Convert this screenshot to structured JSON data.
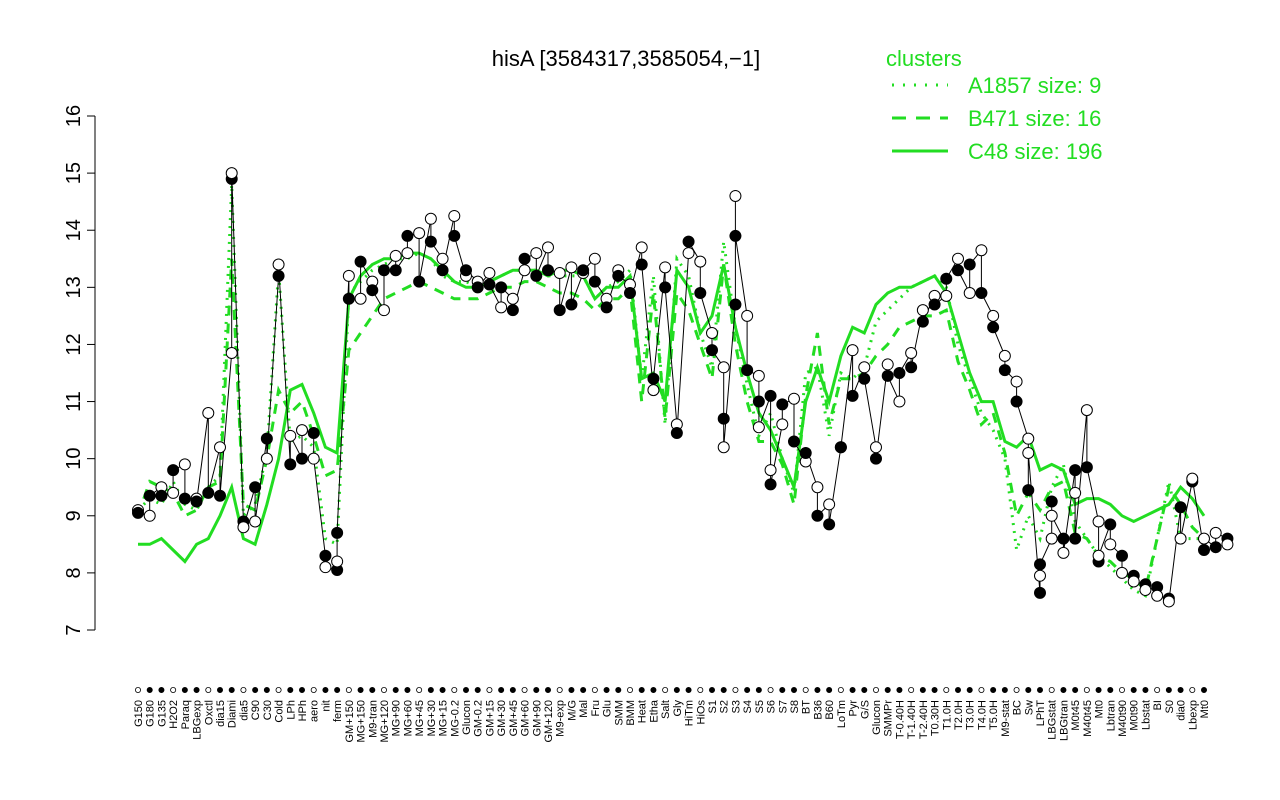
{
  "chart_data": {
    "type": "line",
    "title": "hisA [3584317,3585054,−1]",
    "xlabel": "",
    "ylabel": "",
    "ylim": [
      7,
      16
    ],
    "yticks": [
      "7",
      "8",
      "9",
      "10",
      "11",
      "12",
      "13",
      "14",
      "15",
      "16"
    ],
    "grid": false,
    "legend": {
      "title": "clusters",
      "placement": "top-right",
      "entries": [
        {
          "label": "A1857 size: 9",
          "style": "dotted"
        },
        {
          "label": "B471 size: 16",
          "style": "dashed"
        },
        {
          "label": "C48 size: 196",
          "style": "solid"
        }
      ]
    },
    "line_color": "#22dd22",
    "xtick_labels": [
      "G150",
      "G180",
      "G135",
      "H2O2",
      "Paraq",
      "LBGexp",
      "Oxctl",
      "dia15",
      "Diami",
      "dia5",
      "C90",
      "C30",
      "Cold",
      "LPh",
      "HPh",
      "aero",
      "nit",
      "ferm",
      "GM+150",
      "MG+150",
      "M9-tran",
      "MG+120",
      "MG+90",
      "MG+60",
      "MG+45",
      "MG+30",
      "MG+15",
      "MG-0.2",
      "Glucon",
      "GM-0.2",
      "GM+15",
      "GM+30",
      "GM+45",
      "GM+60",
      "GM+90",
      "GM+120",
      "M9-exp",
      "M/G",
      "Mal",
      "Fru",
      "Glu",
      "SMM",
      "BMM",
      "Heat",
      "Etha",
      "Salt",
      "Gly",
      "HiTm",
      "HiOs",
      "S1",
      "S2",
      "S3",
      "S4",
      "S5",
      "S6",
      "S7",
      "S8",
      "BT",
      "B36",
      "B60",
      "LoTm",
      "Pyr",
      "G/S",
      "Glucon",
      "SMMPr",
      "T-0.40H",
      "T-1.40H",
      "T-2.40H",
      "T0.30H",
      "T1.0H",
      "T2.0H",
      "T3.0H",
      "T4.0H",
      "T5.0H",
      "M9-stat",
      "BC",
      "Sw",
      "LPhT",
      "LBGstat",
      "LBGtran",
      "M0t45",
      "M40t45",
      "Mt0",
      "Lbtran",
      "M40t90",
      "M0t90",
      "Lbstat",
      "BI",
      "S0",
      "dia0",
      "Lbexp",
      "Mt0"
    ],
    "series": [
      {
        "style": "solid",
        "values": [
          8.5,
          8.5,
          8.6,
          8.4,
          8.2,
          8.5,
          8.6,
          9.0,
          9.5,
          8.6,
          8.5,
          9.2,
          10.0,
          11.2,
          11.3,
          10.8,
          10.2,
          10.1,
          12.8,
          13.2,
          13.4,
          13.5,
          13.5,
          13.6,
          13.6,
          13.5,
          13.3,
          13.1,
          13.0,
          13.0,
          13.1,
          13.2,
          13.3,
          13.3,
          13.3,
          13.2,
          13.3,
          13.3,
          13.2,
          12.8,
          13.0,
          13.0,
          13.2,
          11.4,
          11.5,
          11.0,
          13.3,
          13.0,
          12.2,
          12.5,
          13.4,
          12.3,
          11.5,
          10.8,
          10.5,
          10.0,
          9.5,
          11.0,
          11.6,
          11.0,
          11.8,
          12.3,
          12.2,
          12.7,
          12.9,
          13.0,
          13.0,
          13.1,
          13.2,
          12.9,
          12.2,
          11.5,
          11.0,
          11.0,
          10.3,
          10.2,
          10.4,
          9.8,
          9.9,
          9.8,
          9.2,
          9.3,
          9.3,
          9.2,
          9.0,
          8.9,
          9.0,
          9.1,
          9.2,
          9.5,
          9.3,
          9.0
        ]
      },
      {
        "style": "dashed",
        "values": [
          9.0,
          9.6,
          9.5,
          9.4,
          9.0,
          9.1,
          9.5,
          9.6,
          13.5,
          9.2,
          9.1,
          10.0,
          11.2,
          10.8,
          11.0,
          10.4,
          9.7,
          9.8,
          11.9,
          12.2,
          12.5,
          12.8,
          12.9,
          13.0,
          13.1,
          13.0,
          12.9,
          12.8,
          12.8,
          12.8,
          12.9,
          13.0,
          13.0,
          13.1,
          13.1,
          13.0,
          12.9,
          12.9,
          12.8,
          12.6,
          12.8,
          12.8,
          13.0,
          11.0,
          12.9,
          10.7,
          12.9,
          12.6,
          12.0,
          11.4,
          13.4,
          12.0,
          11.0,
          10.3,
          10.3,
          9.9,
          9.2,
          11.1,
          12.2,
          10.6,
          11.4,
          11.4,
          11.5,
          11.8,
          12.0,
          12.3,
          12.4,
          12.5,
          12.5,
          12.6,
          11.7,
          11.2,
          10.6,
          10.8,
          10.1,
          9.0,
          9.4,
          9.1,
          9.5,
          9.6,
          8.7,
          8.6,
          8.3,
          8.2,
          8.0,
          7.9,
          7.7,
          8.6,
          9.5,
          9.2,
          8.8,
          8.6
        ]
      },
      {
        "style": "dotted",
        "values": [
          9.1,
          9.3,
          9.2,
          9.6,
          9.2,
          9.1,
          9.5,
          9.7,
          14.8,
          9.0,
          9.2,
          10.1,
          13.3,
          10.3,
          10.4,
          10.2,
          8.6,
          8.5,
          12.9,
          13.1,
          13.3,
          13.4,
          13.5,
          13.5,
          13.6,
          13.5,
          13.2,
          13.1,
          13.1,
          13.0,
          13.1,
          13.2,
          13.3,
          13.3,
          13.3,
          13.2,
          13.2,
          13.2,
          13.2,
          12.8,
          13.0,
          13.1,
          13.3,
          11.4,
          13.2,
          10.6,
          13.5,
          13.2,
          12.2,
          11.6,
          13.8,
          12.3,
          11.3,
          10.4,
          10.8,
          10.0,
          9.4,
          11.5,
          11.6,
          10.4,
          11.5,
          11.4,
          11.6,
          12.4,
          12.6,
          12.8,
          13.0,
          13.1,
          13.2,
          13.0,
          12.0,
          11.4,
          10.8,
          10.5,
          10.0,
          8.4,
          9.0,
          8.6,
          9.5,
          9.9,
          8.9,
          8.6,
          8.3,
          8.1,
          7.9,
          7.7,
          7.6,
          8.6,
          9.6,
          8.6,
          8.6,
          8.6
        ]
      }
    ],
    "points": [
      {
        "x": 1,
        "y": 9.1
      },
      {
        "x": 1,
        "y": 9.05
      },
      {
        "x": 2,
        "y": 9.0
      },
      {
        "x": 2,
        "y": 9.35
      },
      {
        "x": 3,
        "y": 9.5
      },
      {
        "x": 3,
        "y": 9.35
      },
      {
        "x": 4,
        "y": 9.4
      },
      {
        "x": 4,
        "y": 9.8
      },
      {
        "x": 5,
        "y": 9.9
      },
      {
        "x": 5,
        "y": 9.3
      },
      {
        "x": 6,
        "y": 9.3
      },
      {
        "x": 6,
        "y": 9.25
      },
      {
        "x": 7,
        "y": 10.8
      },
      {
        "x": 7,
        "y": 9.4
      },
      {
        "x": 8,
        "y": 10.2
      },
      {
        "x": 8,
        "y": 9.35
      },
      {
        "x": 9,
        "y": 11.85
      },
      {
        "x": 9,
        "y": 14.9
      },
      {
        "x": 9,
        "y": 15.0
      },
      {
        "x": 10,
        "y": 8.9
      },
      {
        "x": 10,
        "y": 8.8
      },
      {
        "x": 11,
        "y": 9.5
      },
      {
        "x": 11,
        "y": 8.9
      },
      {
        "x": 12,
        "y": 10.35
      },
      {
        "x": 12,
        "y": 10.0
      },
      {
        "x": 13,
        "y": 13.2
      },
      {
        "x": 13,
        "y": 13.4
      },
      {
        "x": 14,
        "y": 9.9
      },
      {
        "x": 14,
        "y": 10.4
      },
      {
        "x": 15,
        "y": 10.0
      },
      {
        "x": 15,
        "y": 10.5
      },
      {
        "x": 16,
        "y": 10.45
      },
      {
        "x": 16,
        "y": 10.0
      },
      {
        "x": 17,
        "y": 8.3
      },
      {
        "x": 17,
        "y": 8.1
      },
      {
        "x": 18,
        "y": 8.05
      },
      {
        "x": 18,
        "y": 8.2
      },
      {
        "x": 18,
        "y": 8.7
      },
      {
        "x": 19,
        "y": 13.2
      },
      {
        "x": 19,
        "y": 12.8
      },
      {
        "x": 20,
        "y": 12.8
      },
      {
        "x": 20,
        "y": 13.45
      },
      {
        "x": 21,
        "y": 13.1
      },
      {
        "x": 21,
        "y": 12.95
      },
      {
        "x": 22,
        "y": 12.6
      },
      {
        "x": 22,
        "y": 13.3
      },
      {
        "x": 23,
        "y": 13.55
      },
      {
        "x": 23,
        "y": 13.3
      },
      {
        "x": 24,
        "y": 13.6
      },
      {
        "x": 24,
        "y": 13.9
      },
      {
        "x": 25,
        "y": 13.95
      },
      {
        "x": 25,
        "y": 13.1
      },
      {
        "x": 26,
        "y": 14.2
      },
      {
        "x": 26,
        "y": 13.8
      },
      {
        "x": 27,
        "y": 13.5
      },
      {
        "x": 27,
        "y": 13.3
      },
      {
        "x": 28,
        "y": 14.25
      },
      {
        "x": 28,
        "y": 13.9
      },
      {
        "x": 29,
        "y": 13.2
      },
      {
        "x": 29,
        "y": 13.3
      },
      {
        "x": 30,
        "y": 13.1
      },
      {
        "x": 30,
        "y": 13.0
      },
      {
        "x": 31,
        "y": 13.25
      },
      {
        "x": 31,
        "y": 13.05
      },
      {
        "x": 32,
        "y": 12.65
      },
      {
        "x": 32,
        "y": 13.0
      },
      {
        "x": 33,
        "y": 12.8
      },
      {
        "x": 33,
        "y": 12.6
      },
      {
        "x": 34,
        "y": 13.3
      },
      {
        "x": 34,
        "y": 13.5
      },
      {
        "x": 35,
        "y": 13.6
      },
      {
        "x": 35,
        "y": 13.2
      },
      {
        "x": 36,
        "y": 13.7
      },
      {
        "x": 36,
        "y": 13.3
      },
      {
        "x": 37,
        "y": 13.25
      },
      {
        "x": 37,
        "y": 12.6
      },
      {
        "x": 38,
        "y": 13.35
      },
      {
        "x": 38,
        "y": 12.7
      },
      {
        "x": 39,
        "y": 13.25
      },
      {
        "x": 39,
        "y": 13.3
      },
      {
        "x": 40,
        "y": 13.5
      },
      {
        "x": 40,
        "y": 13.1
      },
      {
        "x": 41,
        "y": 12.8
      },
      {
        "x": 41,
        "y": 12.65
      },
      {
        "x": 42,
        "y": 13.3
      },
      {
        "x": 42,
        "y": 13.2
      },
      {
        "x": 43,
        "y": 13.05
      },
      {
        "x": 43,
        "y": 12.9
      },
      {
        "x": 44,
        "y": 13.7
      },
      {
        "x": 44,
        "y": 13.4
      },
      {
        "x": 45,
        "y": 11.2
      },
      {
        "x": 45,
        "y": 11.4
      },
      {
        "x": 46,
        "y": 13.35
      },
      {
        "x": 46,
        "y": 13.0
      },
      {
        "x": 47,
        "y": 10.6
      },
      {
        "x": 47,
        "y": 10.45
      },
      {
        "x": 48,
        "y": 13.6
      },
      {
        "x": 48,
        "y": 13.8
      },
      {
        "x": 49,
        "y": 13.45
      },
      {
        "x": 49,
        "y": 12.9
      },
      {
        "x": 50,
        "y": 12.2
      },
      {
        "x": 50,
        "y": 11.9
      },
      {
        "x": 51,
        "y": 11.6
      },
      {
        "x": 51,
        "y": 10.7
      },
      {
        "x": 51,
        "y": 10.2
      },
      {
        "x": 52,
        "y": 12.7
      },
      {
        "x": 52,
        "y": 14.6
      },
      {
        "x": 52,
        "y": 13.9
      },
      {
        "x": 53,
        "y": 12.5
      },
      {
        "x": 53,
        "y": 11.55
      },
      {
        "x": 54,
        "y": 11.45
      },
      {
        "x": 54,
        "y": 11.0
      },
      {
        "x": 54,
        "y": 10.55
      },
      {
        "x": 55,
        "y": 11.1
      },
      {
        "x": 55,
        "y": 9.8
      },
      {
        "x": 55,
        "y": 9.55
      },
      {
        "x": 56,
        "y": 10.6
      },
      {
        "x": 56,
        "y": 10.95
      },
      {
        "x": 57,
        "y": 11.05
      },
      {
        "x": 57,
        "y": 10.3
      },
      {
        "x": 58,
        "y": 9.95
      },
      {
        "x": 58,
        "y": 10.1
      },
      {
        "x": 59,
        "y": 9.5
      },
      {
        "x": 59,
        "y": 9.0
      },
      {
        "x": 60,
        "y": 9.2
      },
      {
        "x": 60,
        "y": 8.85
      },
      {
        "x": 61,
        "y": 10.2
      },
      {
        "x": 61,
        "y": 10.2
      },
      {
        "x": 62,
        "y": 11.9
      },
      {
        "x": 62,
        "y": 11.1
      },
      {
        "x": 63,
        "y": 11.6
      },
      {
        "x": 63,
        "y": 11.4
      },
      {
        "x": 64,
        "y": 10.2
      },
      {
        "x": 64,
        "y": 10.0
      },
      {
        "x": 65,
        "y": 11.65
      },
      {
        "x": 65,
        "y": 11.45
      },
      {
        "x": 66,
        "y": 11.0
      },
      {
        "x": 66,
        "y": 11.5
      },
      {
        "x": 67,
        "y": 11.85
      },
      {
        "x": 67,
        "y": 11.6
      },
      {
        "x": 68,
        "y": 12.6
      },
      {
        "x": 68,
        "y": 12.4
      },
      {
        "x": 69,
        "y": 12.85
      },
      {
        "x": 69,
        "y": 12.7
      },
      {
        "x": 70,
        "y": 12.85
      },
      {
        "x": 70,
        "y": 13.15
      },
      {
        "x": 71,
        "y": 13.5
      },
      {
        "x": 71,
        "y": 13.3
      },
      {
        "x": 72,
        "y": 12.9
      },
      {
        "x": 72,
        "y": 13.4
      },
      {
        "x": 73,
        "y": 13.65
      },
      {
        "x": 73,
        "y": 12.9
      },
      {
        "x": 74,
        "y": 12.5
      },
      {
        "x": 74,
        "y": 12.3
      },
      {
        "x": 75,
        "y": 11.8
      },
      {
        "x": 75,
        "y": 11.55
      },
      {
        "x": 76,
        "y": 11.35
      },
      {
        "x": 76,
        "y": 11.0
      },
      {
        "x": 77,
        "y": 10.35
      },
      {
        "x": 77,
        "y": 9.45
      },
      {
        "x": 77,
        "y": 10.1
      },
      {
        "x": 78,
        "y": 7.65
      },
      {
        "x": 78,
        "y": 7.95
      },
      {
        "x": 78,
        "y": 8.15
      },
      {
        "x": 79,
        "y": 8.6
      },
      {
        "x": 79,
        "y": 9.25
      },
      {
        "x": 79,
        "y": 9.0
      },
      {
        "x": 80,
        "y": 8.6
      },
      {
        "x": 80,
        "y": 8.35
      },
      {
        "x": 81,
        "y": 9.8
      },
      {
        "x": 81,
        "y": 9.4
      },
      {
        "x": 81,
        "y": 8.6
      },
      {
        "x": 82,
        "y": 10.85
      },
      {
        "x": 82,
        "y": 9.85
      },
      {
        "x": 83,
        "y": 8.9
      },
      {
        "x": 83,
        "y": 8.2
      },
      {
        "x": 83,
        "y": 8.3
      },
      {
        "x": 84,
        "y": 8.85
      },
      {
        "x": 84,
        "y": 8.5
      },
      {
        "x": 85,
        "y": 8.3
      },
      {
        "x": 85,
        "y": 8.0
      },
      {
        "x": 86,
        "y": 7.95
      },
      {
        "x": 86,
        "y": 7.85
      },
      {
        "x": 87,
        "y": 7.8
      },
      {
        "x": 87,
        "y": 7.7
      },
      {
        "x": 88,
        "y": 7.75
      },
      {
        "x": 88,
        "y": 7.6
      },
      {
        "x": 89,
        "y": 7.55
      },
      {
        "x": 89,
        "y": 7.5
      },
      {
        "x": 90,
        "y": 9.15
      },
      {
        "x": 90,
        "y": 8.6
      },
      {
        "x": 91,
        "y": 9.6
      },
      {
        "x": 91,
        "y": 9.65
      },
      {
        "x": 92,
        "y": 8.4
      },
      {
        "x": 92,
        "y": 8.6
      },
      {
        "x": 93,
        "y": 8.45
      },
      {
        "x": 93,
        "y": 8.7
      },
      {
        "x": 94,
        "y": 8.6
      },
      {
        "x": 94,
        "y": 8.5
      }
    ]
  }
}
